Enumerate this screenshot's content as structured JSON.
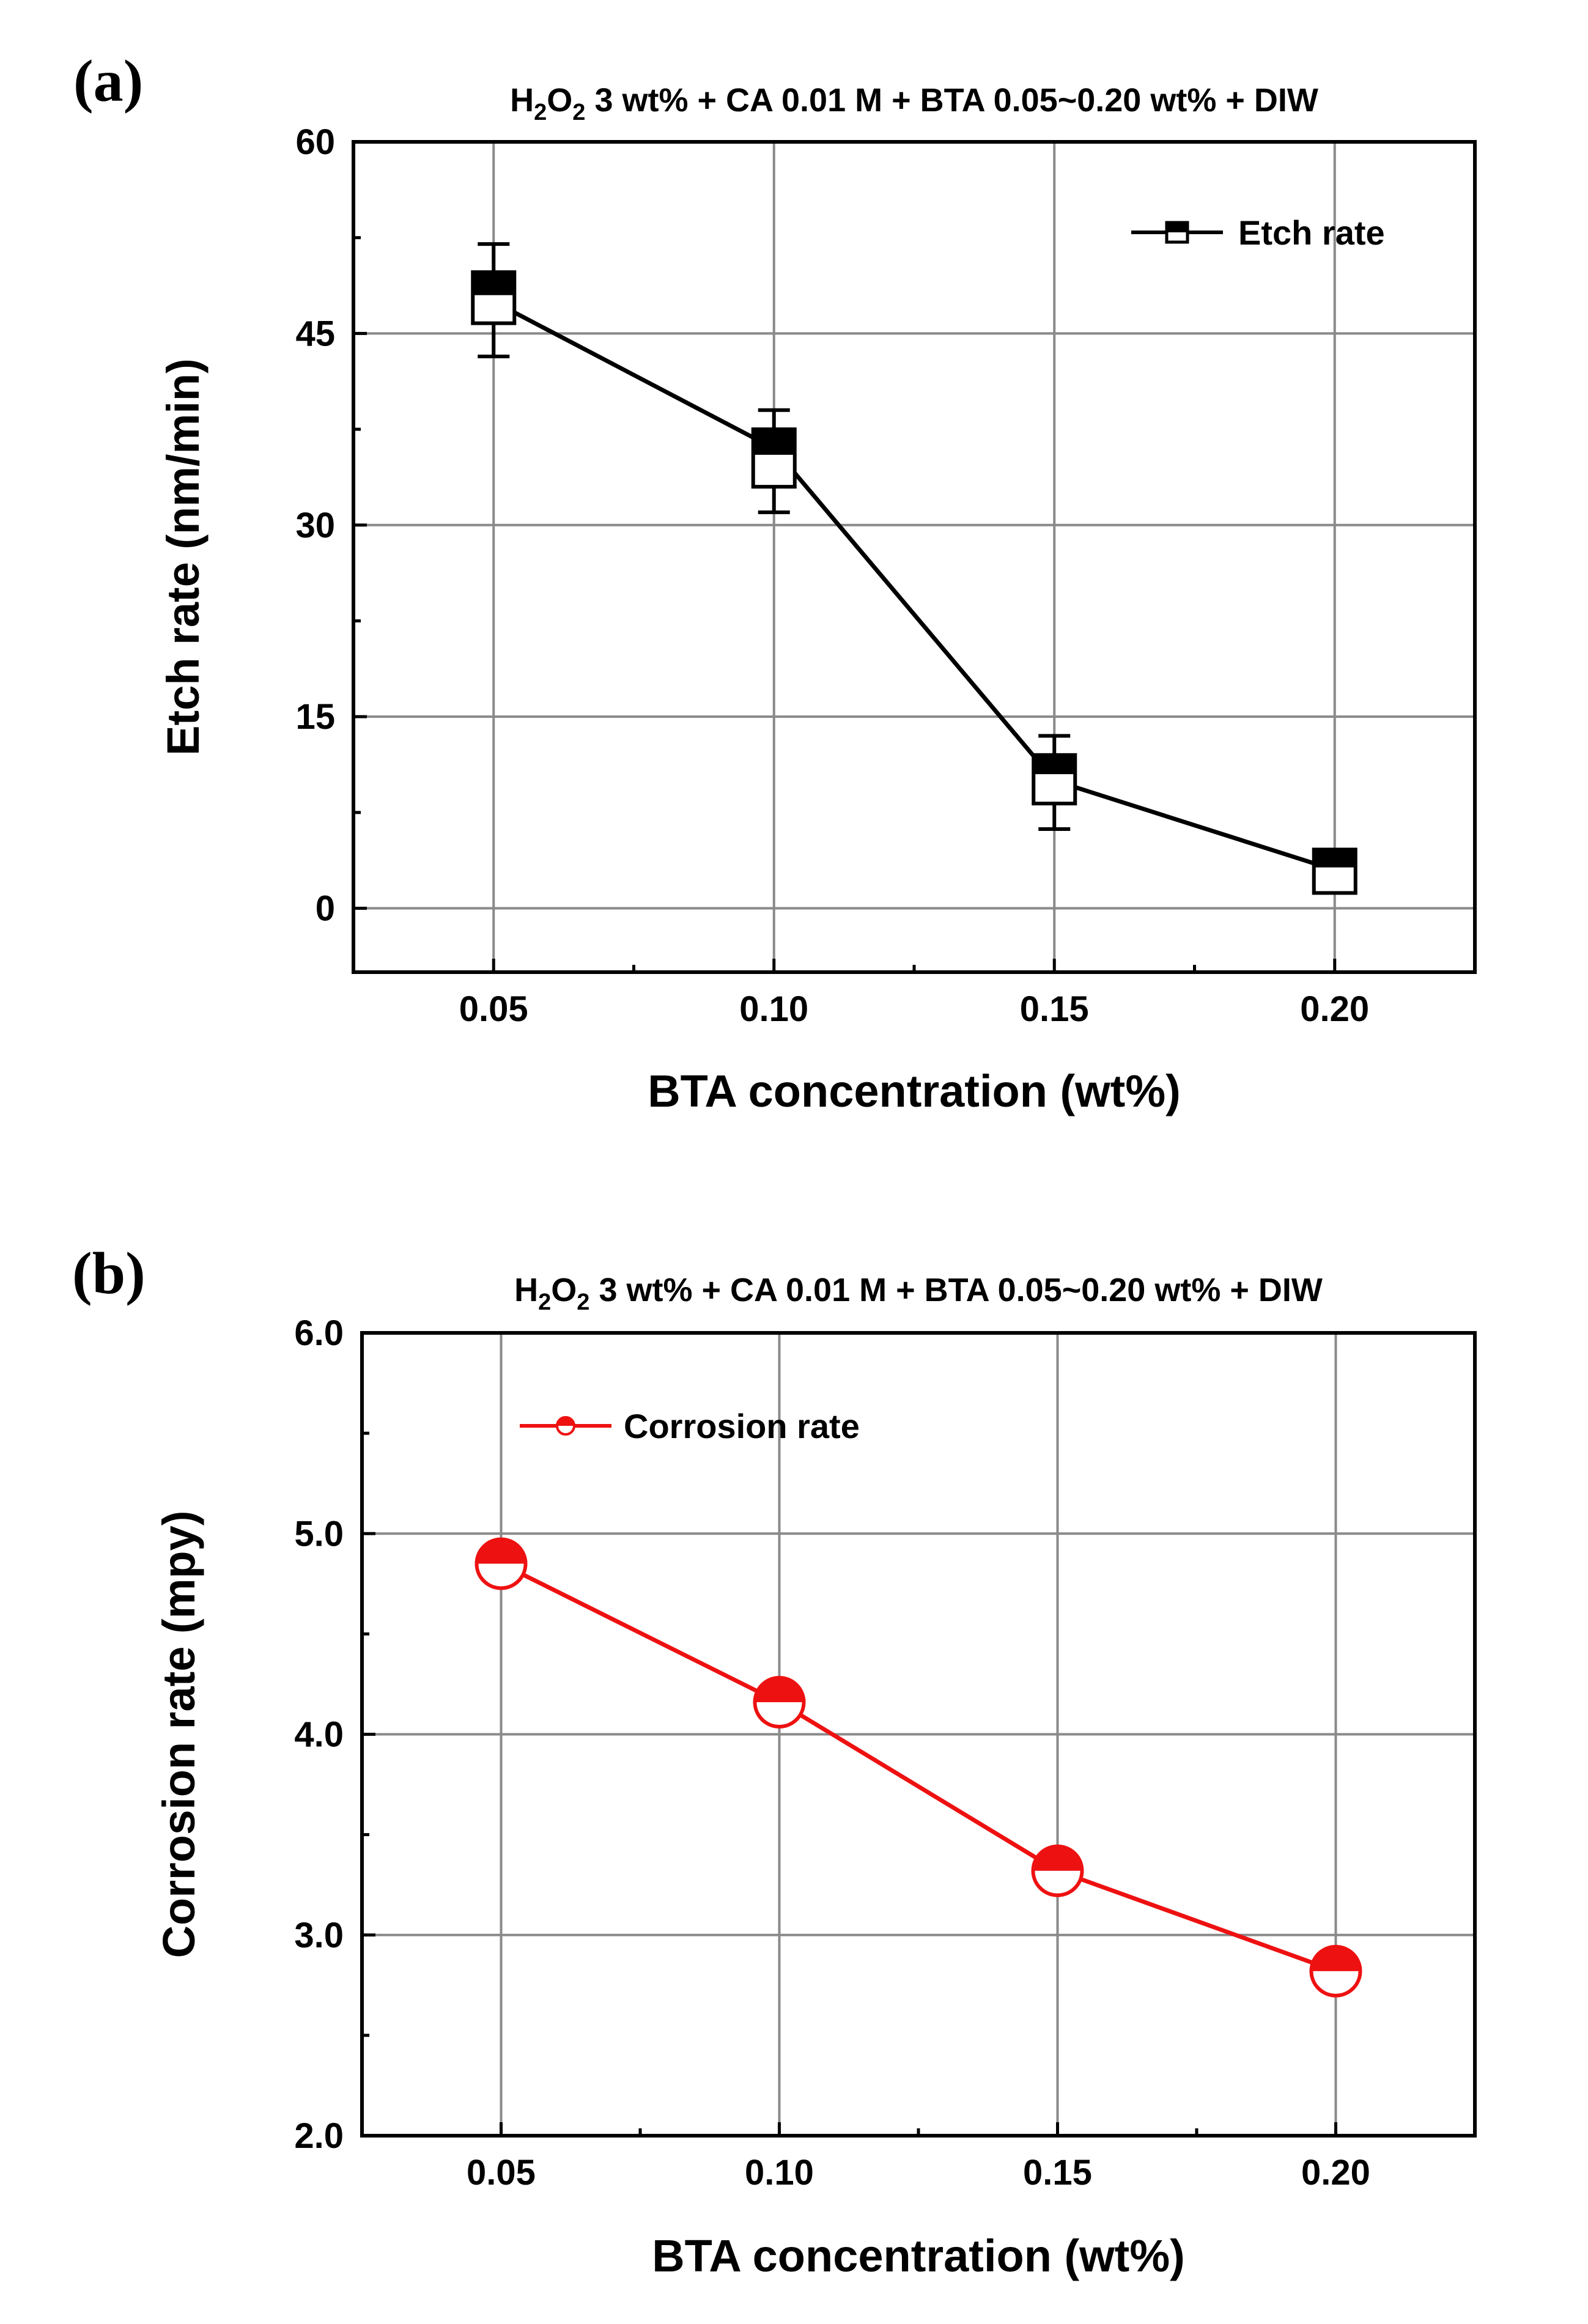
{
  "chart_data": [
    {
      "type": "line",
      "panel_label": "(a)",
      "title": {
        "pre": "H",
        "s1": "2",
        "mid": "O",
        "s2": "2",
        "post": " 3 wt% + CA 0.01 M + BTA 0.05~0.20 wt% + DIW"
      },
      "xlabel": "BTA concentration (wt%)",
      "ylabel": "Etch rate (nm/min)",
      "x": [
        0.05,
        0.1,
        0.15,
        0.2
      ],
      "x_tick_labels": [
        "0.05",
        "0.10",
        "0.15",
        "0.20"
      ],
      "ylim": [
        -5,
        60
      ],
      "y_ticks": [
        0,
        15,
        30,
        45,
        60
      ],
      "y_tick_labels": [
        "0",
        "15",
        "30",
        "45",
        "60"
      ],
      "series": [
        {
          "name": "Etch rate",
          "color": "#000000",
          "box_q1": [
            45.8,
            33.0,
            8.2,
            1.2
          ],
          "box_q3": [
            49.8,
            37.5,
            12.0,
            4.6
          ],
          "median": [
            48.0,
            35.5,
            10.5,
            3.2
          ],
          "whisker_low": [
            43.2,
            31.0,
            6.2,
            1.6
          ],
          "whisker_high": [
            52.0,
            39.0,
            13.5,
            4.2
          ],
          "values": [
            47.5,
            36.0,
            10.0,
            3.0
          ]
        }
      ],
      "legend_position": "top-right",
      "grid": true
    },
    {
      "type": "line",
      "panel_label": "(b)",
      "title": {
        "pre": "H",
        "s1": "2",
        "mid": "O",
        "s2": "2",
        "post": " 3 wt% + CA 0.01 M + BTA 0.05~0.20 wt% + DIW"
      },
      "xlabel": "BTA concentration (wt%)",
      "ylabel": "Corrosion rate (mpy)",
      "x": [
        0.05,
        0.1,
        0.15,
        0.2
      ],
      "x_tick_labels": [
        "0.05",
        "0.10",
        "0.15",
        "0.20"
      ],
      "ylim": [
        2.0,
        6.0
      ],
      "y_ticks": [
        2.0,
        3.0,
        4.0,
        5.0,
        6.0
      ],
      "y_tick_labels": [
        "2.0",
        "3.0",
        "4.0",
        "5.0",
        "6.0"
      ],
      "series": [
        {
          "name": "Corrosion rate",
          "color": "#ee1111",
          "values": [
            4.85,
            4.16,
            3.32,
            2.82
          ]
        }
      ],
      "legend_position": "top-left",
      "grid": true
    }
  ]
}
